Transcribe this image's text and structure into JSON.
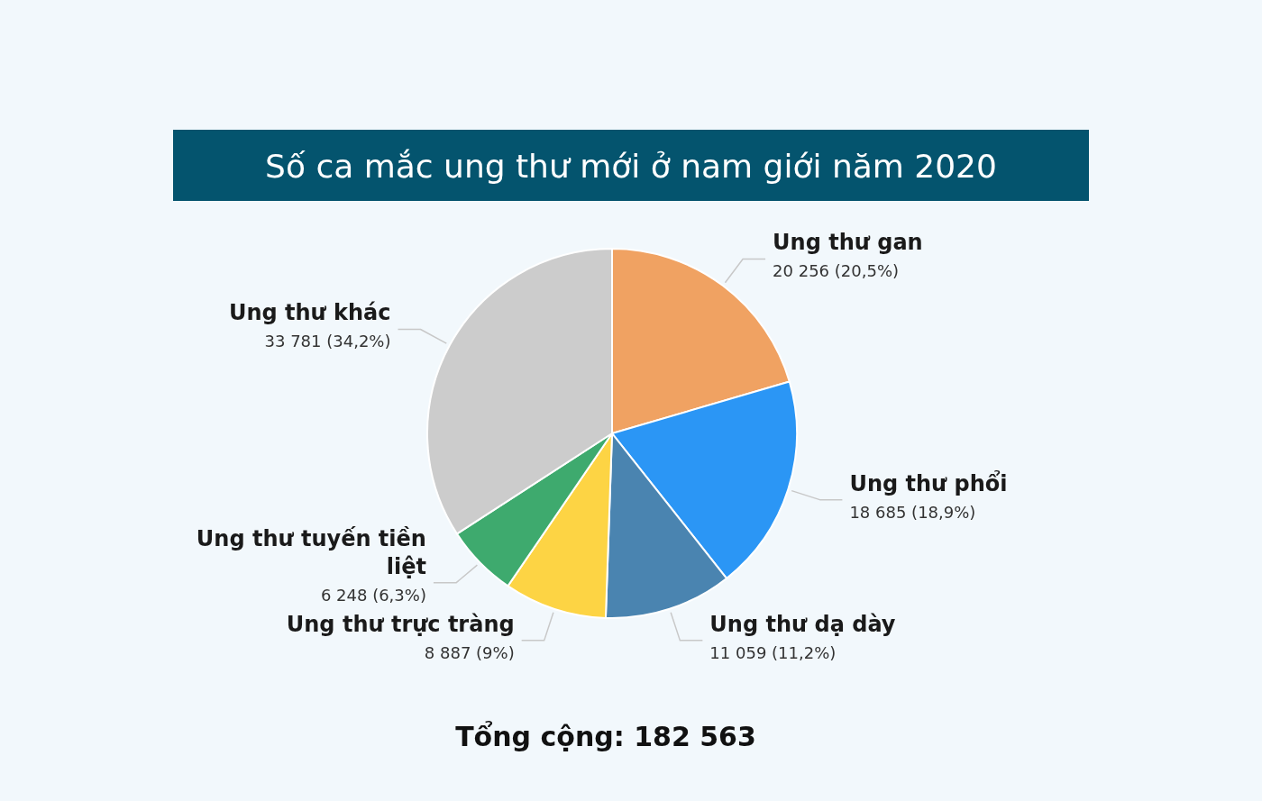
{
  "chart_data": {
    "type": "pie",
    "title": "Số ca mắc ung thư mới ở nam giới năm 2020",
    "categories": [
      "Ung thư gan",
      "Ung thư phổi",
      "Ung thư dạ dày",
      "Ung thư trực tràng",
      "Ung thư tuyến tiền liệt",
      "Ung thư khác"
    ],
    "values": [
      20256,
      18685,
      11059,
      8887,
      6248,
      33781
    ],
    "colors": [
      "#f0a262",
      "#2b96f5",
      "#4a84b0",
      "#fdd444",
      "#3eaa6e",
      "#cccccc"
    ],
    "value_labels": [
      "20 256 (20,5%)",
      "18 685 (18,9%)",
      "11 059 (11,2%)",
      "8 887 (9%)",
      "6 248 (6,3%)",
      "33 781 (34,2%)"
    ],
    "annotations": [
      "Tổng cộng: 182 563"
    ]
  }
}
